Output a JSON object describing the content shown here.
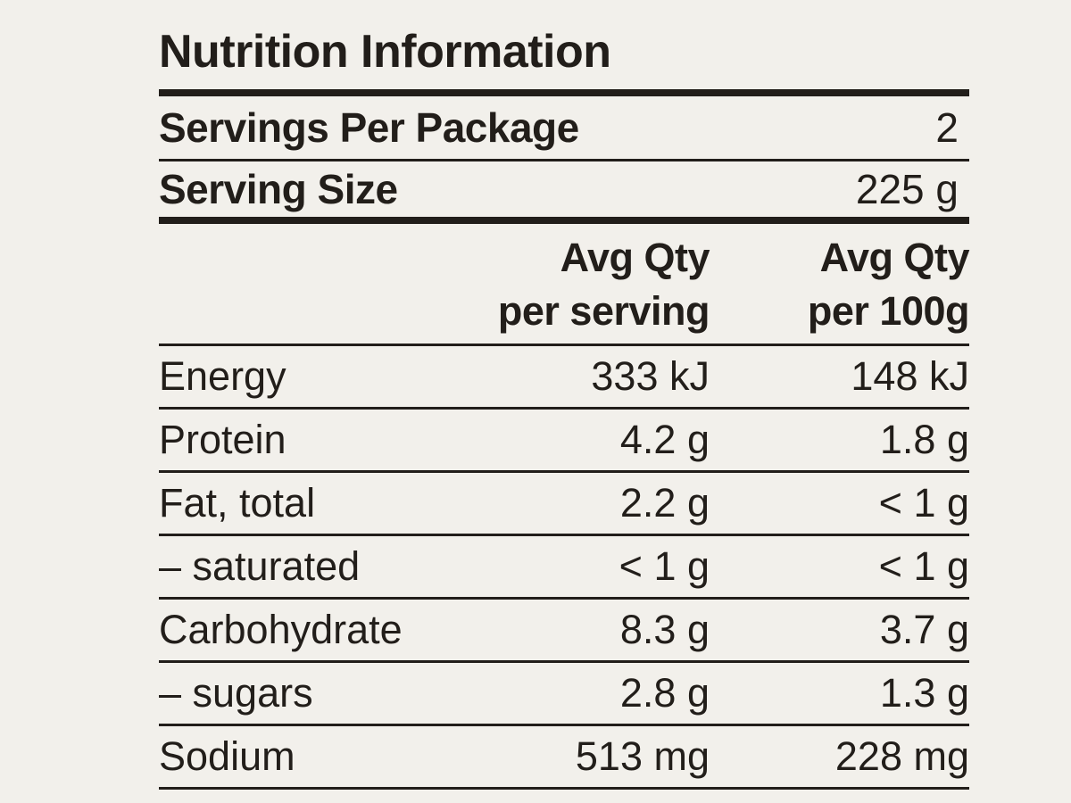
{
  "page": {
    "background_color": "#f2f0eb",
    "ink_color": "#221e1a"
  },
  "panel": {
    "title": "Nutrition Information",
    "serving_rows": [
      {
        "label": "Servings Per Package",
        "value": "2"
      },
      {
        "label": "Serving Size",
        "value": "225 g"
      }
    ],
    "column_headers": {
      "per_serving_line1": "Avg Qty",
      "per_serving_line2": "per serving",
      "per_100g_line1": "Avg Qty",
      "per_100g_line2": "per 100g"
    },
    "nutrients": [
      {
        "label": "Energy",
        "per_serving": "333 kJ",
        "per_100g": "148 kJ"
      },
      {
        "label": "Protein",
        "per_serving": "4.2 g",
        "per_100g": "1.8 g"
      },
      {
        "label": "Fat, total",
        "per_serving": "2.2 g",
        "per_100g": "< 1 g"
      },
      {
        "label": "– saturated",
        "per_serving": "< 1 g",
        "per_100g": "< 1 g"
      },
      {
        "label": "Carbohydrate",
        "per_serving": "8.3 g",
        "per_100g": "3.7 g"
      },
      {
        "label": "– sugars",
        "per_serving": "2.8 g",
        "per_100g": "1.3 g"
      },
      {
        "label": "Sodium",
        "per_serving": "513 mg",
        "per_100g": "228 mg"
      }
    ]
  }
}
